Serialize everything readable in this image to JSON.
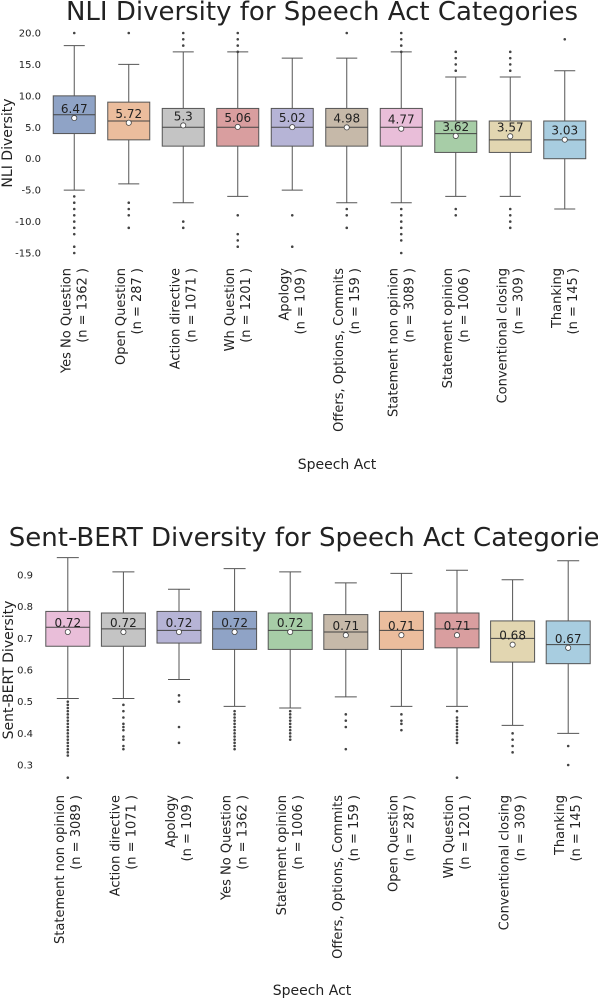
{
  "chart_data": [
    {
      "type": "box",
      "title": "NLI Diversity for Speech Act Categories",
      "xlabel": "Speech Act",
      "ylabel": "NLI Diversity",
      "yticks": [
        "20.0",
        "15.0",
        "10.0",
        "5.0",
        "0.0",
        "-5.0",
        "-10.0",
        "-15.0"
      ],
      "ylim": [
        -15,
        20
      ],
      "categories": [
        {
          "name": "Yes No Question",
          "n": "(n = 1362 )",
          "color": "#8fa3c6",
          "mean_label": "6.47",
          "mean": 6.47,
          "q1": 4,
          "median": 7,
          "q3": 10,
          "wlo": -5,
          "whi": 18,
          "fliers": [
            20,
            -6,
            -7,
            -8,
            -9,
            -10,
            -11,
            -12,
            -14,
            -15
          ]
        },
        {
          "name": "Open Question",
          "n": "(n = 287 )",
          "color": "#ebbd9d",
          "mean_label": "5.72",
          "mean": 5.72,
          "q1": 3,
          "median": 6,
          "q3": 9,
          "wlo": -4,
          "whi": 15,
          "fliers": [
            20,
            -7,
            -8,
            -9,
            -11
          ]
        },
        {
          "name": "Action directive",
          "n": "(n = 1071 )",
          "color": "#c4c4c4",
          "mean_label": "5.3",
          "mean": 5.3,
          "q1": 2,
          "median": 5,
          "q3": 8,
          "wlo": -7,
          "whi": 17,
          "fliers": [
            20,
            19,
            18,
            -10,
            -11
          ]
        },
        {
          "name": "Wh Question",
          "n": "(n = 1201 )",
          "color": "#d99e9f",
          "mean_label": "5.06",
          "mean": 5.06,
          "q1": 2,
          "median": 5,
          "q3": 8,
          "wlo": -6,
          "whi": 17,
          "fliers": [
            20,
            19,
            18,
            17,
            -9,
            -12,
            -13,
            -14
          ]
        },
        {
          "name": "Apology",
          "n": "(n = 109 )",
          "color": "#b6b4d6",
          "mean_label": "5.02",
          "mean": 5.02,
          "q1": 2,
          "median": 5,
          "q3": 8,
          "wlo": -5,
          "whi": 16,
          "fliers": [
            -9,
            -14
          ]
        },
        {
          "name": "Offers, Options, Commits",
          "n": "(n = 159 )",
          "color": "#c6b9a9",
          "mean_label": "4.98",
          "mean": 4.98,
          "q1": 2,
          "median": 5,
          "q3": 8,
          "wlo": -7,
          "whi": 16,
          "fliers": [
            20,
            -8,
            -9,
            -11
          ]
        },
        {
          "name": "Statement non opinion",
          "n": "(n = 3089 )",
          "color": "#e9bed9",
          "mean_label": "4.77",
          "mean": 4.77,
          "q1": 2,
          "median": 5,
          "q3": 8,
          "wlo": -7,
          "whi": 17,
          "fliers": [
            20,
            19,
            18,
            17,
            -8,
            -9,
            -10,
            -11,
            -12,
            -13,
            -15
          ]
        },
        {
          "name": "Statement opinion",
          "n": "(n = 1006 )",
          "color": "#a7cda7",
          "mean_label": "3.62",
          "mean": 3.62,
          "q1": 1,
          "median": 4,
          "q3": 6,
          "wlo": -6,
          "whi": 13,
          "fliers": [
            14,
            15,
            16,
            17,
            -8,
            -9
          ]
        },
        {
          "name": "Conventional closing",
          "n": "(n = 309 )",
          "color": "#e2d6b1",
          "mean_label": "3.57",
          "mean": 3.57,
          "q1": 1,
          "median": 3,
          "q3": 6,
          "wlo": -6,
          "whi": 13,
          "fliers": [
            14,
            15,
            16,
            17,
            -8,
            -9,
            -10,
            -11
          ]
        },
        {
          "name": "Thanking",
          "n": "(n = 145 )",
          "color": "#a8cde0",
          "mean_label": "3.03",
          "mean": 3.03,
          "q1": 0,
          "median": 3,
          "q3": 6,
          "wlo": -8,
          "whi": 14,
          "fliers": [
            19
          ]
        }
      ]
    },
    {
      "type": "box",
      "title": "Sent-BERT Diversity for Speech Act Categories",
      "xlabel": "Speech Act",
      "ylabel": "Sent-BERT Diversity",
      "yticks": [
        "0.9",
        "0.8",
        "0.7",
        "0.6",
        "0.5",
        "0.4",
        "0.3"
      ],
      "ylim": [
        0.3,
        0.9
      ],
      "categories": [
        {
          "name": "Statement non opinion",
          "n": "(n = 3089 )",
          "color": "#e9bed9",
          "mean_label": "0.72",
          "mean": 0.72,
          "q1": 0.675,
          "median": 0.735,
          "q3": 0.785,
          "wlo": 0.51,
          "whi": 0.955,
          "fliers": [
            0.26,
            0.5,
            0.49,
            0.48,
            0.47,
            0.46,
            0.45,
            0.44,
            0.43,
            0.42,
            0.41,
            0.4,
            0.39,
            0.38,
            0.37,
            0.36,
            0.35,
            0.34,
            0.33
          ]
        },
        {
          "name": "Action directive",
          "n": "(n = 1071 )",
          "color": "#c4c4c4",
          "mean_label": "0.72",
          "mean": 0.72,
          "q1": 0.675,
          "median": 0.73,
          "q3": 0.78,
          "wlo": 0.51,
          "whi": 0.91,
          "fliers": [
            0.49,
            0.47,
            0.45,
            0.43,
            0.42,
            0.41,
            0.39,
            0.38,
            0.36,
            0.35
          ]
        },
        {
          "name": "Apology",
          "n": "(n = 109 )",
          "color": "#b6b4d6",
          "mean_label": "0.72",
          "mean": 0.72,
          "q1": 0.685,
          "median": 0.725,
          "q3": 0.785,
          "wlo": 0.57,
          "whi": 0.855,
          "fliers": [
            0.52,
            0.5,
            0.42,
            0.37
          ]
        },
        {
          "name": "Yes No Question",
          "n": "(n = 1362 )",
          "color": "#8fa3c6",
          "mean_label": "0.72",
          "mean": 0.72,
          "q1": 0.665,
          "median": 0.73,
          "q3": 0.785,
          "wlo": 0.485,
          "whi": 0.92,
          "fliers": [
            0.47,
            0.46,
            0.45,
            0.44,
            0.43,
            0.42,
            0.41,
            0.4,
            0.39,
            0.38,
            0.37,
            0.36,
            0.35
          ]
        },
        {
          "name": "Statement opinion",
          "n": "(n = 1006 )",
          "color": "#a7cda7",
          "mean_label": "0.72",
          "mean": 0.72,
          "q1": 0.665,
          "median": 0.725,
          "q3": 0.78,
          "wlo": 0.48,
          "whi": 0.91,
          "fliers": [
            0.47,
            0.46,
            0.45,
            0.44,
            0.43,
            0.42,
            0.41,
            0.4,
            0.39,
            0.38
          ]
        },
        {
          "name": "Offers, Options, Commits",
          "n": "(n = 159 )",
          "color": "#c6b9a9",
          "mean_label": "0.71",
          "mean": 0.71,
          "q1": 0.665,
          "median": 0.72,
          "q3": 0.775,
          "wlo": 0.515,
          "whi": 0.875,
          "fliers": [
            0.46,
            0.44,
            0.42,
            0.35
          ]
        },
        {
          "name": "Open Question",
          "n": "(n = 287 )",
          "color": "#ebbd9d",
          "mean_label": "0.71",
          "mean": 0.71,
          "q1": 0.665,
          "median": 0.725,
          "q3": 0.785,
          "wlo": 0.485,
          "whi": 0.905,
          "fliers": [
            0.46,
            0.44,
            0.43,
            0.41
          ]
        },
        {
          "name": "Wh Question",
          "n": "(n = 1201 )",
          "color": "#d99e9f",
          "mean_label": "0.71",
          "mean": 0.71,
          "q1": 0.67,
          "median": 0.73,
          "q3": 0.78,
          "wlo": 0.485,
          "whi": 0.915,
          "fliers": [
            0.47,
            0.45,
            0.44,
            0.43,
            0.42,
            0.41,
            0.4,
            0.39,
            0.38,
            0.37,
            0.26
          ]
        },
        {
          "name": "Conventional closing",
          "n": "(n = 309 )",
          "color": "#e2d6b1",
          "mean_label": "0.68",
          "mean": 0.68,
          "q1": 0.625,
          "median": 0.7,
          "q3": 0.755,
          "wlo": 0.425,
          "whi": 0.885,
          "fliers": [
            0.4,
            0.38,
            0.36,
            0.34
          ]
        },
        {
          "name": "Thanking",
          "n": "(n = 145 )",
          "color": "#a8cde0",
          "mean_label": "0.67",
          "mean": 0.67,
          "q1": 0.62,
          "median": 0.68,
          "q3": 0.755,
          "wlo": 0.4,
          "whi": 0.945,
          "fliers": [
            0.36,
            0.3
          ]
        }
      ]
    }
  ]
}
